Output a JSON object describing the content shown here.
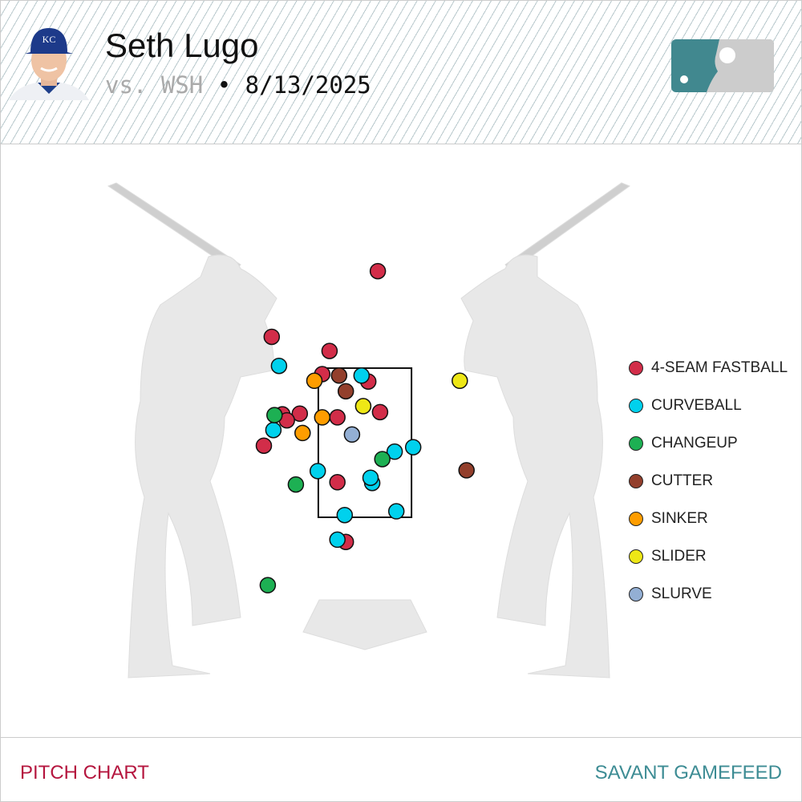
{
  "header": {
    "pitcher_name": "Seth Lugo",
    "opponent": "vs. WSH",
    "separator": "•",
    "date": "8/13/2025"
  },
  "footer": {
    "left_label": "PITCH CHART",
    "right_label": "SAVANT GAMEFEED"
  },
  "chart_data": {
    "type": "scatter",
    "x_axis": "horizontal plate location (ft, catcher view)",
    "y_axis": "vertical plate location (ft)",
    "strike_zone": {
      "left": -0.83,
      "right": 0.83,
      "bottom": 1.5,
      "top": 3.5
    },
    "legend_position": "right",
    "series": [
      {
        "name": "4-SEAM FASTBALL",
        "color": "#d22d49",
        "points": [
          [
            0.23,
            4.8
          ],
          [
            -1.66,
            3.92
          ],
          [
            -0.63,
            3.73
          ],
          [
            -0.76,
            3.42
          ],
          [
            0.06,
            3.32
          ],
          [
            0.27,
            2.91
          ],
          [
            -0.49,
            2.84
          ],
          [
            -1.16,
            2.89
          ],
          [
            -1.47,
            2.88
          ],
          [
            -1.39,
            2.8
          ],
          [
            -1.8,
            2.46
          ],
          [
            -0.49,
            1.97
          ],
          [
            -0.34,
            1.17
          ]
        ]
      },
      {
        "name": "CURVEBALL",
        "color": "#00d1ed",
        "points": [
          [
            -1.53,
            3.53
          ],
          [
            -0.06,
            3.4
          ],
          [
            -1.63,
            2.67
          ],
          [
            0.53,
            2.38
          ],
          [
            0.86,
            2.44
          ],
          [
            -0.84,
            2.12
          ],
          [
            0.13,
            1.96
          ],
          [
            0.1,
            2.03
          ],
          [
            0.56,
            1.58
          ],
          [
            -0.36,
            1.53
          ],
          [
            -0.49,
            1.2
          ]
        ]
      },
      {
        "name": "CHANGEUP",
        "color": "#1db053",
        "points": [
          [
            -1.61,
            2.87
          ],
          [
            0.31,
            2.28
          ],
          [
            -1.23,
            1.94
          ],
          [
            -1.73,
            0.59
          ]
        ]
      },
      {
        "name": "CUTTER",
        "color": "#933f2c",
        "points": [
          [
            -0.46,
            3.4
          ],
          [
            -0.34,
            3.19
          ],
          [
            1.81,
            2.13
          ]
        ]
      },
      {
        "name": "SINKER",
        "color": "#fe9d00",
        "points": [
          [
            -0.9,
            3.33
          ],
          [
            -0.76,
            2.84
          ],
          [
            -1.11,
            2.63
          ]
        ]
      },
      {
        "name": "SLIDER",
        "color": "#eee716",
        "points": [
          [
            1.69,
            3.33
          ],
          [
            -0.03,
            2.99
          ]
        ]
      },
      {
        "name": "SLURVE",
        "color": "#93afd4",
        "points": [
          [
            -0.23,
            2.61
          ]
        ]
      }
    ]
  }
}
